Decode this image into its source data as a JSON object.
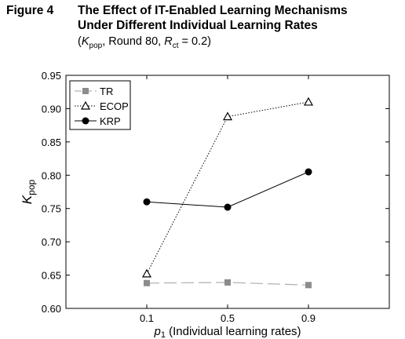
{
  "figure": {
    "label": "Figure 4",
    "title_line1": "The Effect of IT-Enabled Learning Mechanisms",
    "title_line2": "Under Different Individual Learning Rates",
    "subtitle": {
      "open": "(",
      "k_main": "K",
      "k_sub": "pop",
      "middle": ", Round 80, ",
      "r_main": "R",
      "r_sub": "ct",
      "end": " = 0.2)"
    }
  },
  "chart_data": {
    "type": "line",
    "title": "The Effect of IT-Enabled Learning Mechanisms Under Different Individual Learning Rates",
    "categories": [
      "0.1",
      "0.5",
      "0.9"
    ],
    "x": [
      0.1,
      0.5,
      0.9
    ],
    "xlim": [
      -0.3,
      1.3
    ],
    "ylim": [
      0.6,
      0.95
    ],
    "yticks": [
      "0.60",
      "0.65",
      "0.70",
      "0.75",
      "0.80",
      "0.85",
      "0.90",
      "0.95"
    ],
    "ytick_values": [
      0.6,
      0.65,
      0.7,
      0.75,
      0.8,
      0.85,
      0.9,
      0.95
    ],
    "xlabel": {
      "main": "p",
      "sub": "1",
      "rest": " (Individual learning rates)"
    },
    "ylabel": {
      "main": "K",
      "sub": "pop"
    },
    "grid": false,
    "legend_position": "top-left",
    "series": [
      {
        "name": "TR",
        "values": [
          0.638,
          0.639,
          0.635
        ],
        "marker": "square",
        "line": "long-dash",
        "color": "#b4b4b4",
        "marker_color": "#8c8c8c"
      },
      {
        "name": "ECOP",
        "values": [
          0.652,
          0.888,
          0.91
        ],
        "marker": "triangle-open",
        "line": "dotted",
        "color": "#000000",
        "marker_color": "#000000"
      },
      {
        "name": "KRP",
        "values": [
          0.76,
          0.752,
          0.805
        ],
        "marker": "circle",
        "line": "solid",
        "color": "#000000",
        "marker_color": "#000000"
      }
    ]
  }
}
